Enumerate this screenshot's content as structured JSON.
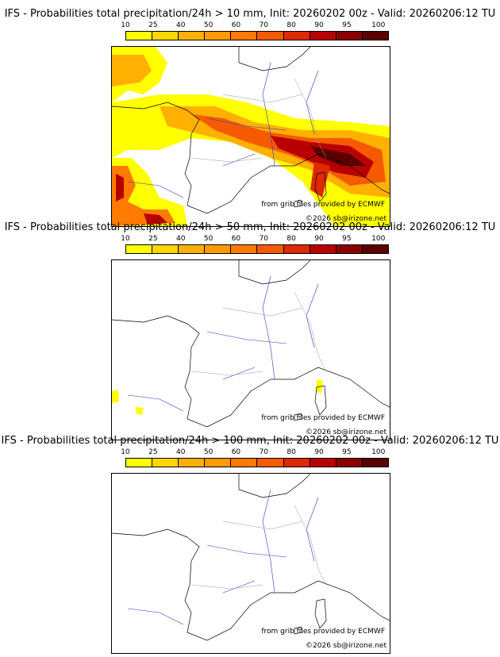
{
  "panels": [
    {
      "title": "IFS - Probabilities total precipitation/24h > 10 mm, Init: 20260202 00z - Valid: 20260206:12 TU",
      "level": "p10"
    },
    {
      "title": "IFS - Probabilities total precipitation/24h > 50 mm, Init: 20260202 00z - Valid: 20260206:12 TU",
      "level": "p50"
    },
    {
      "title": "IFS - Probabilities total precipitation/24h > 100 mm, Init: 20260202 00z - Valid: 20260206:12 TU",
      "level": "p100"
    }
  ],
  "colorbar": {
    "ticks": [
      "10",
      "25",
      "40",
      "50",
      "60",
      "70",
      "80",
      "90",
      "95",
      "100"
    ],
    "colors": [
      "#ffff00",
      "#ffd700",
      "#ffb000",
      "#ff9a00",
      "#ff7a00",
      "#f55a00",
      "#dd2a00",
      "#b80000",
      "#8a0000",
      "#5a0000"
    ]
  },
  "credits": {
    "source": "from grib files provided by ECMWF",
    "copyright": "©2026 sb@irizone.net"
  }
}
